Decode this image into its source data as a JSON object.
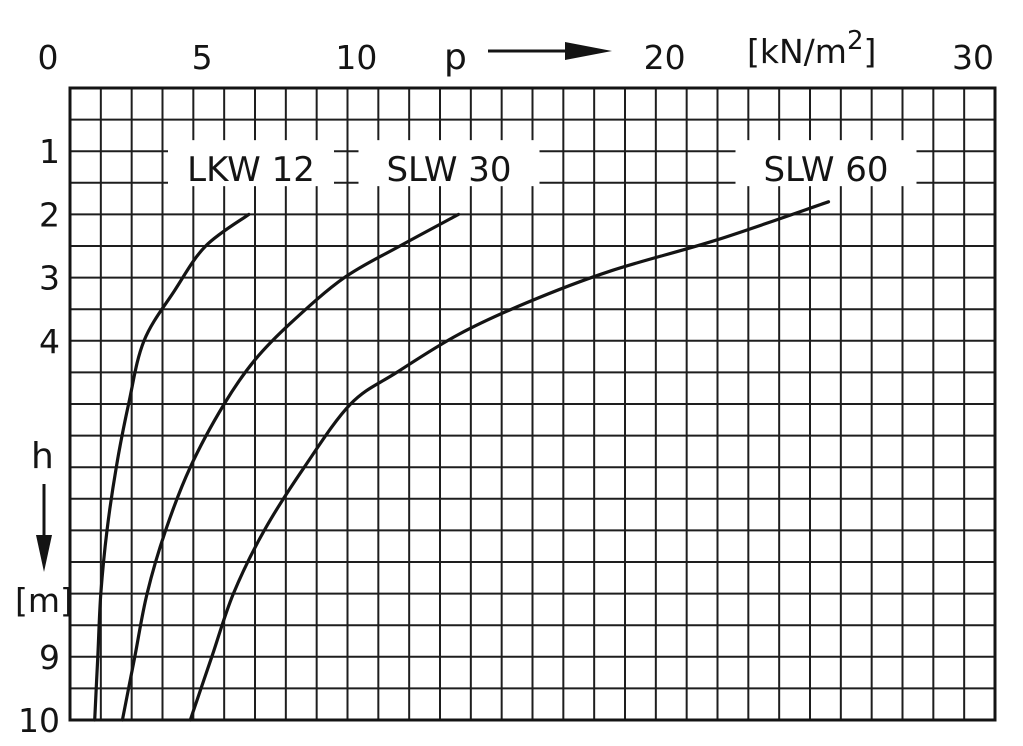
{
  "chart_data": {
    "type": "line",
    "xlabel": "p",
    "x_unit": "[kN/m²]",
    "x_unit_main": "[kN/m",
    "x_unit_sup": "2",
    "x_unit_close": "]",
    "ylabel": "h",
    "y_unit": "[m]",
    "xlim": [
      0,
      30
    ],
    "ylim": [
      0,
      10
    ],
    "y_inverted": true,
    "x_axis_position": "top",
    "grid": true,
    "x_ticks": [
      {
        "value": 0,
        "label": "0"
      },
      {
        "value": 5,
        "label": "5"
      },
      {
        "value": 10,
        "label": "10"
      },
      {
        "value": 20,
        "label": "20"
      },
      {
        "value": 30,
        "label": "30"
      }
    ],
    "y_ticks": [
      {
        "value": 1,
        "label": "1"
      },
      {
        "value": 2,
        "label": "2"
      },
      {
        "value": 3,
        "label": "3"
      },
      {
        "value": 4,
        "label": "4"
      },
      {
        "value": 9,
        "label": "9"
      },
      {
        "value": 10,
        "label": "10"
      }
    ],
    "series": [
      {
        "name": "LKW 12",
        "points": [
          [
            5.8,
            2.0
          ],
          [
            4.4,
            2.5
          ],
          [
            3.4,
            3.2
          ],
          [
            2.4,
            4.0
          ],
          [
            1.9,
            5.0
          ],
          [
            1.5,
            6.0
          ],
          [
            1.2,
            7.0
          ],
          [
            1.0,
            8.0
          ],
          [
            0.9,
            9.0
          ],
          [
            0.8,
            10.0
          ]
        ]
      },
      {
        "name": "SLW 30",
        "points": [
          [
            12.6,
            2.0
          ],
          [
            10.7,
            2.5
          ],
          [
            8.9,
            3.0
          ],
          [
            7.2,
            3.7
          ],
          [
            6.0,
            4.3
          ],
          [
            5.0,
            5.0
          ],
          [
            3.9,
            6.0
          ],
          [
            3.1,
            7.0
          ],
          [
            2.5,
            8.0
          ],
          [
            2.1,
            9.0
          ],
          [
            1.7,
            10.0
          ]
        ]
      },
      {
        "name": "SLW 60",
        "points": [
          [
            24.6,
            1.8
          ],
          [
            21.0,
            2.4
          ],
          [
            17.5,
            2.9
          ],
          [
            14.8,
            3.4
          ],
          [
            12.6,
            3.9
          ],
          [
            10.6,
            4.5
          ],
          [
            9.1,
            5.0
          ],
          [
            7.6,
            6.0
          ],
          [
            6.3,
            7.0
          ],
          [
            5.3,
            8.0
          ],
          [
            4.6,
            9.0
          ],
          [
            3.9,
            10.0
          ]
        ]
      }
    ]
  },
  "colors": {
    "ink": "#141414",
    "grid": "#1e1e1e",
    "background": "#ffffff"
  },
  "icons": {
    "x_axis_arrow": "arrow-right-icon",
    "y_axis_arrow": "arrow-down-icon"
  }
}
